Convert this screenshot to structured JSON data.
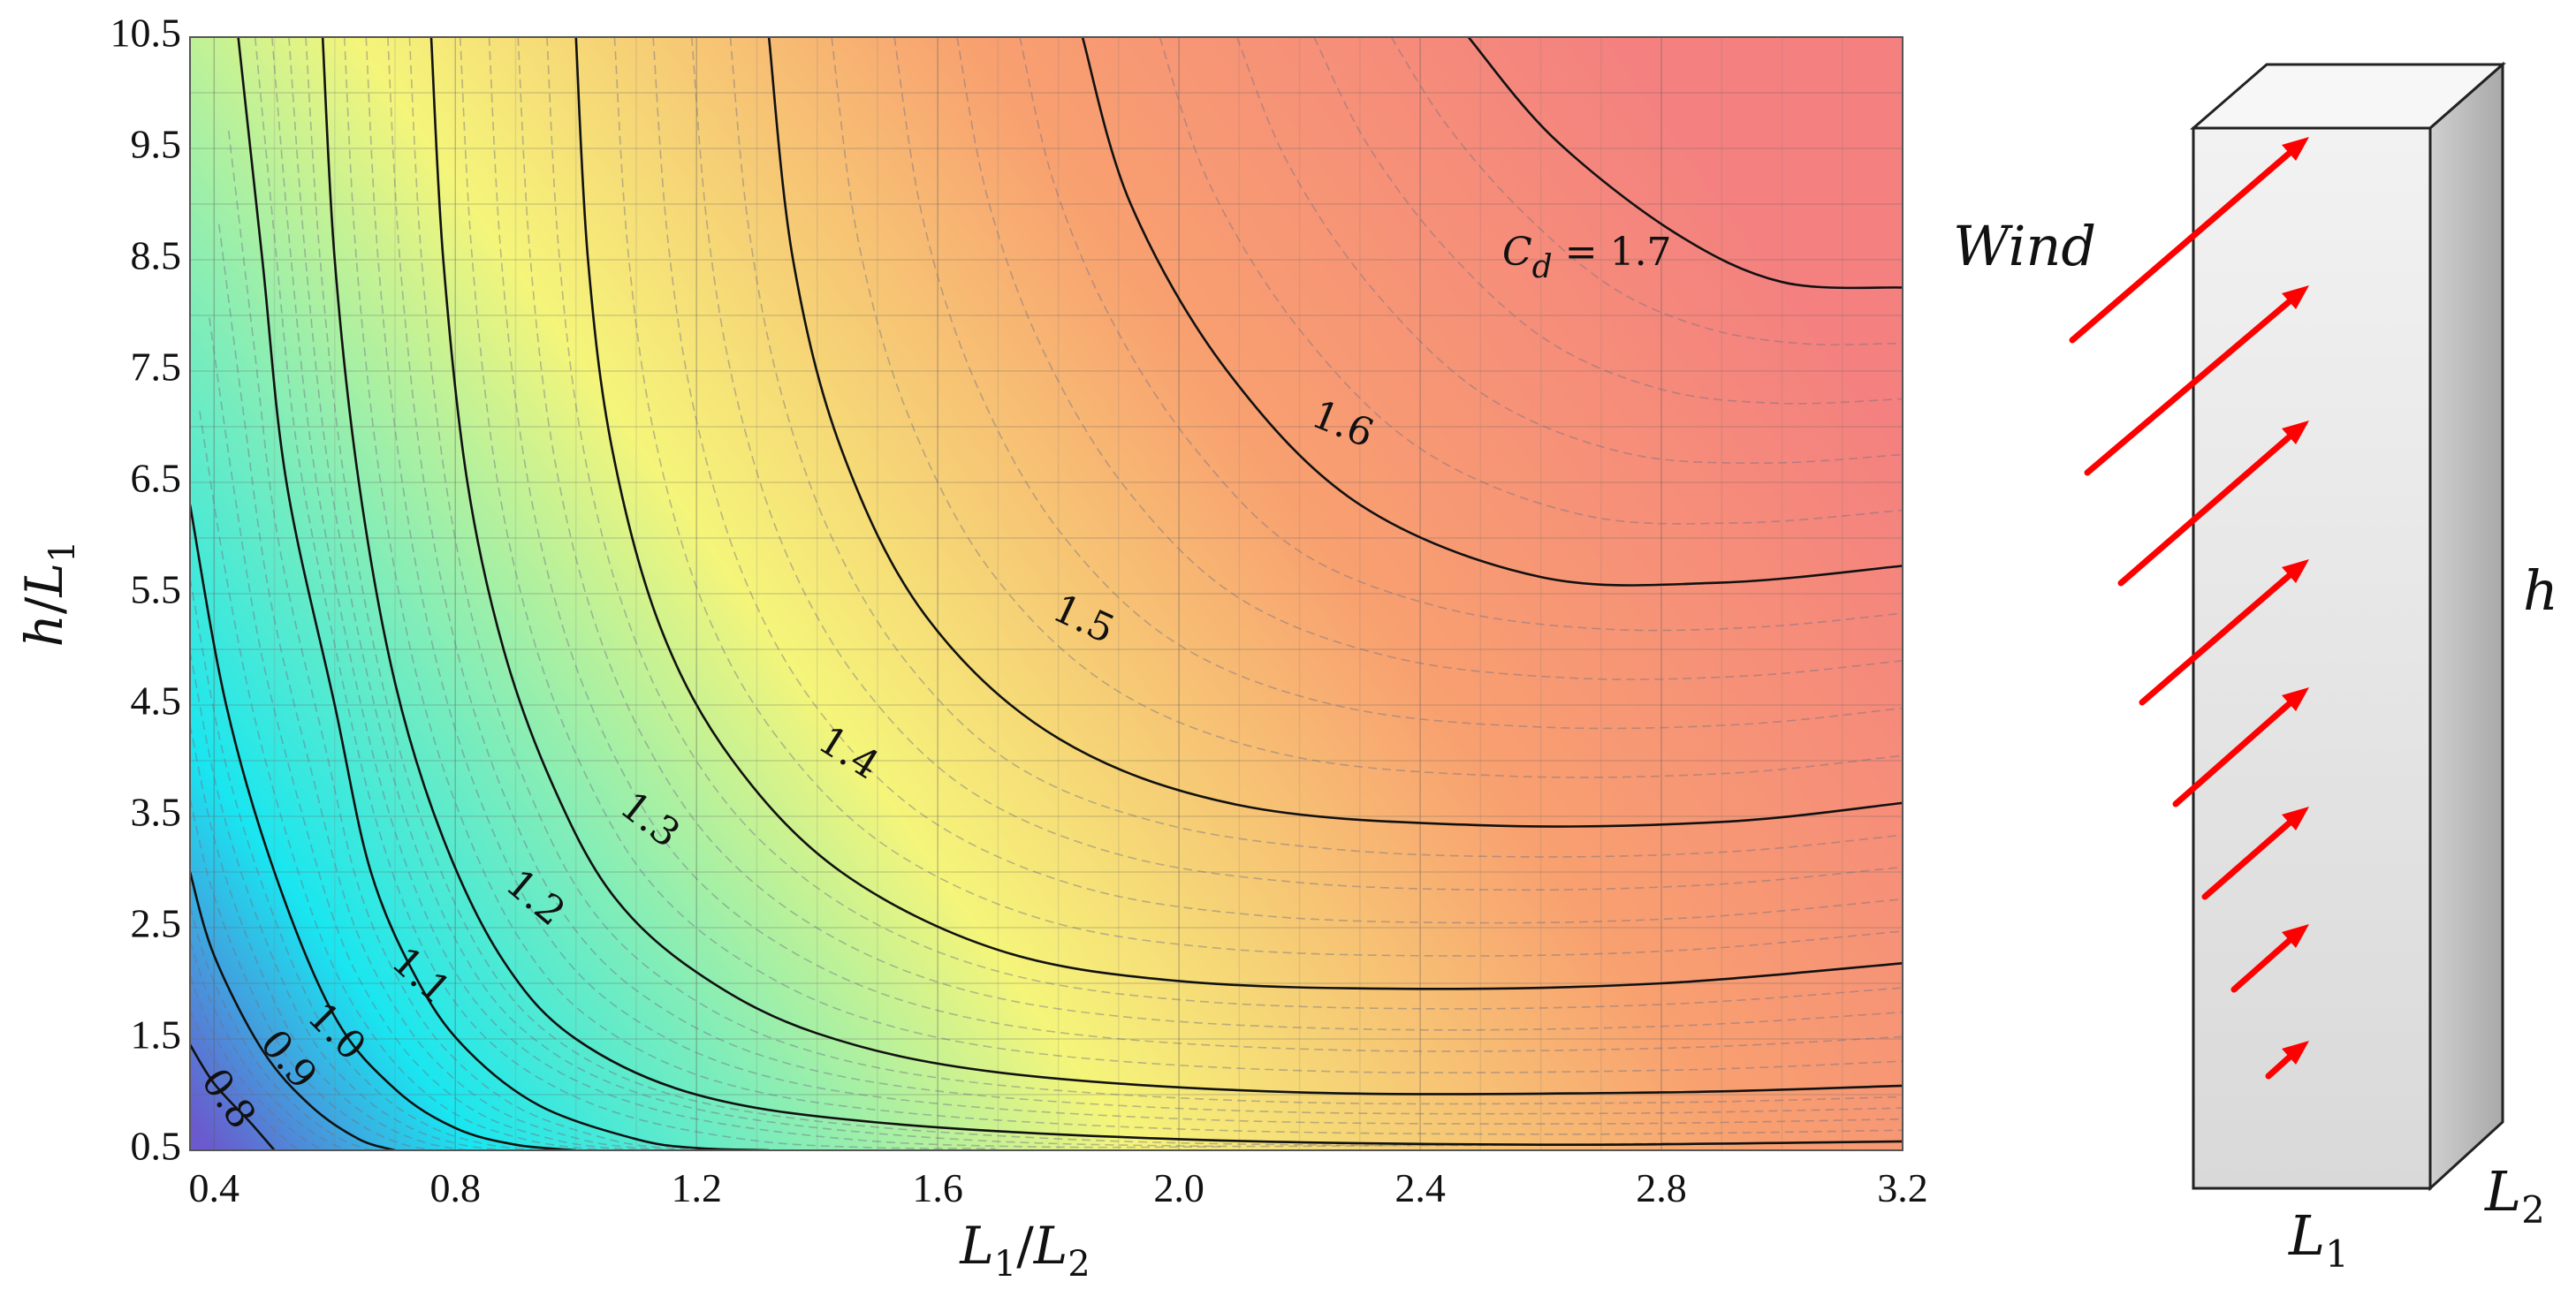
{
  "chart_data": {
    "type": "contour",
    "quantity_symbol": "C",
    "quantity_subscript": "d",
    "x_axis": {
      "label_main": "L",
      "label_sub": "1",
      "label_sep": "/",
      "label_main2": "L",
      "label_sub2": "2",
      "range": [
        0.36,
        3.2
      ],
      "ticks": [
        "0.4",
        "0.8",
        "1.2",
        "1.6",
        "2.0",
        "2.4",
        "2.8",
        "3.2"
      ]
    },
    "y_axis": {
      "label_main": "h",
      "label_sep": "/",
      "label_main2": "L",
      "label_sub2": "1",
      "range": [
        0.5,
        10.5
      ],
      "ticks": [
        "0.5",
        "1.5",
        "2.5",
        "3.5",
        "4.5",
        "5.5",
        "6.5",
        "7.5",
        "8.5",
        "9.5",
        "10.5"
      ]
    },
    "grid": true,
    "colormap": [
      "#6a5acd",
      "#19e6f0",
      "#f5f57a",
      "#f8a070",
      "#f48080"
    ],
    "contour_levels": [
      0.8,
      0.9,
      1.0,
      1.1,
      1.2,
      1.3,
      1.4,
      1.5,
      1.6,
      1.7
    ],
    "contour_labels": [
      "0.8",
      "0.9",
      "1.0",
      "1.1",
      "1.2",
      "1.3",
      "1.4",
      "1.5",
      "1.6",
      "= 1.7"
    ],
    "contours": [
      {
        "level": 0.8,
        "points": [
          [
            0.36,
            1.45
          ],
          [
            0.4,
            1.1
          ],
          [
            0.46,
            0.75
          ],
          [
            0.5,
            0.5
          ]
        ]
      },
      {
        "level": 0.9,
        "points": [
          [
            0.36,
            3.0
          ],
          [
            0.4,
            2.25
          ],
          [
            0.48,
            1.4
          ],
          [
            0.56,
            0.9
          ],
          [
            0.64,
            0.6
          ],
          [
            0.7,
            0.5
          ]
        ]
      },
      {
        "level": 1.0,
        "points": [
          [
            0.36,
            6.3
          ],
          [
            0.42,
            4.5
          ],
          [
            0.5,
            3.0
          ],
          [
            0.6,
            1.7
          ],
          [
            0.7,
            1.05
          ],
          [
            0.8,
            0.7
          ],
          [
            0.9,
            0.55
          ],
          [
            1.0,
            0.5
          ]
        ]
      },
      {
        "level": 1.1,
        "points": [
          [
            0.44,
            10.5
          ],
          [
            0.48,
            8.5
          ],
          [
            0.52,
            6.5
          ],
          [
            0.6,
            4.5
          ],
          [
            0.66,
            3.0
          ],
          [
            0.74,
            2.0
          ],
          [
            0.82,
            1.4
          ],
          [
            0.94,
            0.9
          ],
          [
            1.1,
            0.6
          ],
          [
            1.2,
            0.52
          ],
          [
            1.32,
            0.5
          ]
        ]
      },
      {
        "level": 1.2,
        "points": [
          [
            0.58,
            10.5
          ],
          [
            0.6,
            8.5
          ],
          [
            0.64,
            6.5
          ],
          [
            0.7,
            4.7
          ],
          [
            0.78,
            3.3
          ],
          [
            0.88,
            2.2
          ],
          [
            1.0,
            1.5
          ],
          [
            1.2,
            1.0
          ],
          [
            1.5,
            0.75
          ],
          [
            2.0,
            0.6
          ],
          [
            2.6,
            0.55
          ],
          [
            3.2,
            0.58
          ]
        ]
      },
      {
        "level": 1.3,
        "points": [
          [
            0.76,
            10.5
          ],
          [
            0.78,
            8.5
          ],
          [
            0.82,
            6.5
          ],
          [
            0.88,
            5.0
          ],
          [
            0.96,
            3.8
          ],
          [
            1.06,
            2.8
          ],
          [
            1.2,
            2.1
          ],
          [
            1.4,
            1.55
          ],
          [
            1.7,
            1.2
          ],
          [
            2.2,
            1.02
          ],
          [
            2.8,
            1.02
          ],
          [
            3.2,
            1.08
          ]
        ]
      },
      {
        "level": 1.4,
        "points": [
          [
            1.0,
            10.5
          ],
          [
            1.02,
            8.5
          ],
          [
            1.06,
            6.8
          ],
          [
            1.14,
            5.2
          ],
          [
            1.26,
            4.0
          ],
          [
            1.44,
            3.0
          ],
          [
            1.7,
            2.3
          ],
          [
            2.0,
            2.02
          ],
          [
            2.4,
            1.95
          ],
          [
            2.8,
            2.0
          ],
          [
            3.2,
            2.18
          ]
        ]
      },
      {
        "level": 1.5,
        "points": [
          [
            1.32,
            10.5
          ],
          [
            1.36,
            8.5
          ],
          [
            1.44,
            6.8
          ],
          [
            1.58,
            5.3
          ],
          [
            1.8,
            4.2
          ],
          [
            2.1,
            3.6
          ],
          [
            2.5,
            3.42
          ],
          [
            2.9,
            3.45
          ],
          [
            3.2,
            3.62
          ]
        ]
      },
      {
        "level": 1.6,
        "points": [
          [
            1.84,
            10.5
          ],
          [
            1.92,
            9.0
          ],
          [
            2.08,
            7.5
          ],
          [
            2.3,
            6.3
          ],
          [
            2.6,
            5.65
          ],
          [
            2.9,
            5.6
          ],
          [
            3.2,
            5.75
          ]
        ]
      },
      {
        "level": 1.7,
        "points": [
          [
            2.48,
            10.5
          ],
          [
            2.62,
            9.6
          ],
          [
            2.82,
            8.75
          ],
          [
            3.0,
            8.3
          ],
          [
            3.2,
            8.25
          ]
        ]
      }
    ]
  },
  "diagram": {
    "wind_label": "Wind",
    "height_label": "h",
    "width_label": "L",
    "width_sub": "1",
    "depth_label": "L",
    "depth_sub": "2",
    "prism_color": "#e8e8e8",
    "arrow_color": "#ff0000"
  }
}
